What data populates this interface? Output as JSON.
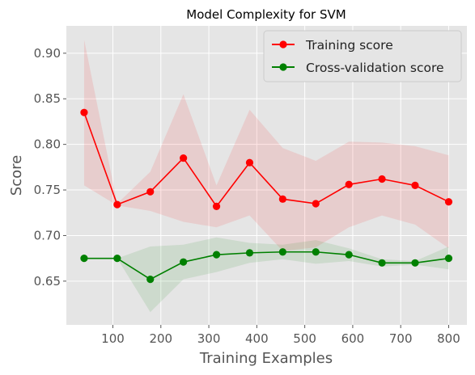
{
  "chart_data": {
    "type": "line",
    "title": "Model Complexity for SVM",
    "xlabel": "Training Examples",
    "ylabel": "Score",
    "xlim": [
      3,
      838
    ],
    "ylim": [
      0.602,
      0.93
    ],
    "xticks": [
      100,
      200,
      300,
      400,
      500,
      600,
      700,
      800
    ],
    "yticks": [
      0.65,
      0.7,
      0.75,
      0.8,
      0.85,
      0.9
    ],
    "grid": true,
    "legend_position": "top-right",
    "x": [
      40,
      109,
      178,
      247,
      316,
      385,
      454,
      523,
      592,
      661,
      730,
      800
    ],
    "series": [
      {
        "name": "Training score",
        "color": "#ff0000",
        "band_color": "#ff0000",
        "values": [
          0.835,
          0.734,
          0.748,
          0.785,
          0.732,
          0.78,
          0.74,
          0.735,
          0.756,
          0.762,
          0.755,
          0.737
        ],
        "lower": [
          0.755,
          0.733,
          0.727,
          0.715,
          0.709,
          0.722,
          0.683,
          0.687,
          0.709,
          0.722,
          0.712,
          0.686
        ],
        "upper": [
          0.915,
          0.735,
          0.77,
          0.855,
          0.755,
          0.838,
          0.796,
          0.782,
          0.803,
          0.802,
          0.798,
          0.788
        ]
      },
      {
        "name": "Cross-validation score",
        "color": "#008000",
        "band_color": "#008000",
        "values": [
          0.675,
          0.675,
          0.652,
          0.671,
          0.679,
          0.681,
          0.682,
          0.682,
          0.679,
          0.67,
          0.67,
          0.675
        ],
        "lower": [
          0.675,
          0.675,
          0.616,
          0.652,
          0.66,
          0.67,
          0.674,
          0.669,
          0.672,
          0.666,
          0.668,
          0.663
        ],
        "upper": [
          0.675,
          0.675,
          0.688,
          0.69,
          0.698,
          0.692,
          0.69,
          0.695,
          0.686,
          0.674,
          0.672,
          0.688
        ]
      }
    ]
  }
}
